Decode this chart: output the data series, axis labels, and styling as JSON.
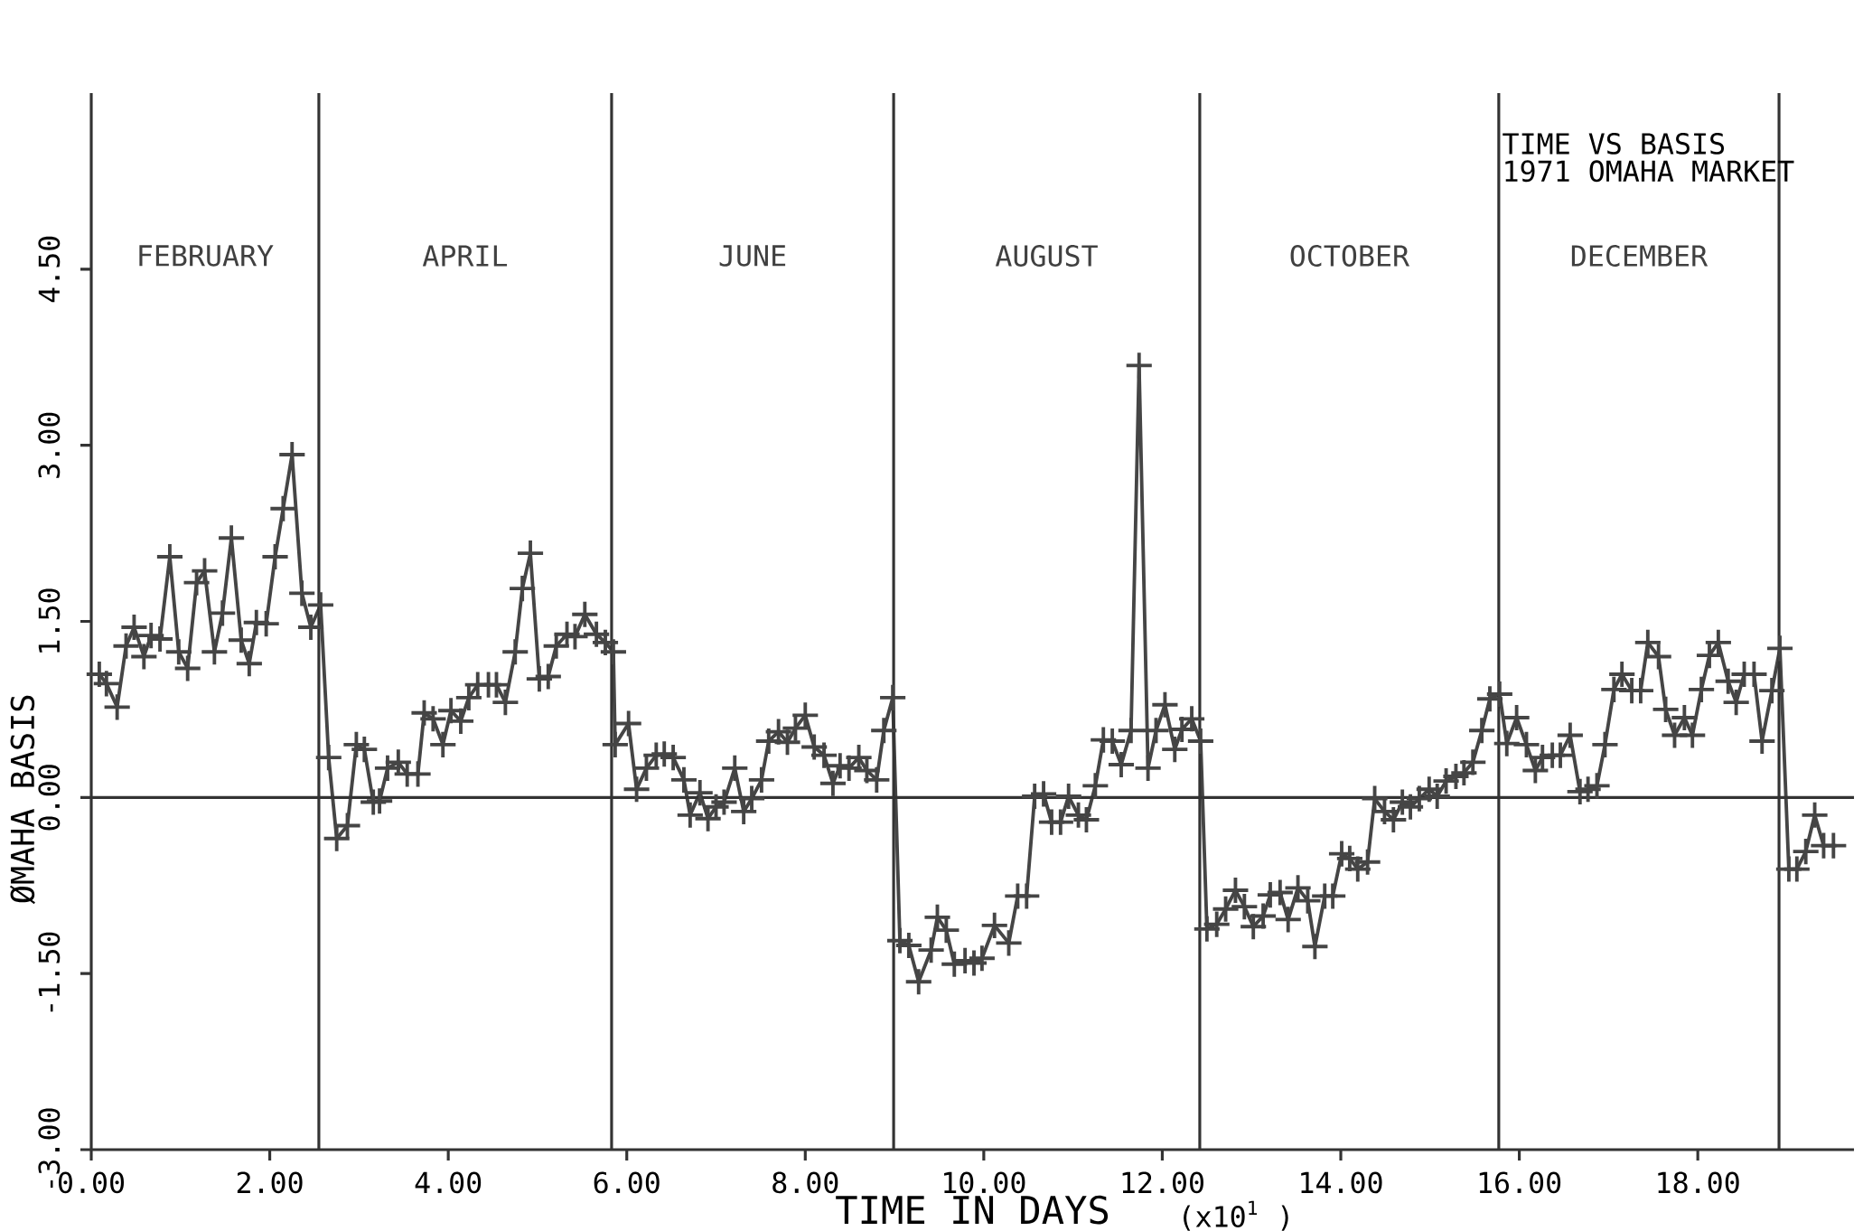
{
  "chart_data": {
    "type": "line",
    "title": "TIME VS BASIS",
    "subtitle": "1971 OMAHA MARKET",
    "xlabel": "TIME IN DAYS",
    "ylabel": "ØMAHA BASIS",
    "annotations": [
      "(x10$^{1}$ )",
      "FEBRUARY",
      "APRIL",
      "JUNE",
      "AUGUST",
      "OCTOBER",
      "DECEMBER"
    ],
    "marker": "cross",
    "line_style": "solid",
    "xlim": [
      0,
      19.75
    ],
    "ylim": [
      -3,
      6
    ],
    "xticks": [
      {
        "value": 0,
        "label": "0.00"
      },
      {
        "value": 2,
        "label": "2.00"
      },
      {
        "value": 4,
        "label": "4.00"
      },
      {
        "value": 6,
        "label": "6.00"
      },
      {
        "value": 8,
        "label": "8.00"
      },
      {
        "value": 10,
        "label": "10.00"
      },
      {
        "value": 12,
        "label": "12.00"
      },
      {
        "value": 14,
        "label": "14.00"
      },
      {
        "value": 16,
        "label": "16.00"
      },
      {
        "value": 18,
        "label": "18.00"
      }
    ],
    "yticks": [
      {
        "value": -3,
        "label": "-3.00"
      },
      {
        "value": -1.5,
        "label": "-1.50"
      },
      {
        "value": 0,
        "label": "0.00"
      },
      {
        "value": 1.5,
        "label": "1.50"
      },
      {
        "value": 3,
        "label": "3.00"
      },
      {
        "value": 4.5,
        "label": "4.50"
      }
    ],
    "ref_lines": [
      {
        "axis": "y",
        "value": 0
      },
      {
        "axis": "x",
        "value": 2.55
      },
      {
        "axis": "x",
        "value": 5.83
      },
      {
        "axis": "x",
        "value": 8.99
      },
      {
        "axis": "x",
        "value": 12.42
      },
      {
        "axis": "x",
        "value": 15.77
      },
      {
        "axis": "x",
        "value": 18.91
      }
    ],
    "series": [
      {
        "color": "#454545",
        "x": [
          0.09,
          0.17,
          0.29,
          0.39,
          0.48,
          0.59,
          0.67,
          0.77,
          0.88,
          0.98,
          1.08,
          1.18,
          1.27,
          1.38,
          1.47,
          1.57,
          1.68,
          1.77,
          1.85,
          1.96,
          2.06,
          2.15,
          2.25,
          2.36,
          2.46,
          2.57,
          2.66,
          2.75,
          2.87,
          2.97,
          3.06,
          3.16,
          3.23,
          3.32,
          3.44,
          3.54,
          3.66,
          3.73,
          3.83,
          3.94,
          4.03,
          4.14,
          4.23,
          4.33,
          4.45,
          4.54,
          4.64,
          4.75,
          4.83,
          4.92,
          5.02,
          5.12,
          5.21,
          5.33,
          5.42,
          5.53,
          5.66,
          5.76,
          5.85,
          5.87,
          6.02,
          6.11,
          6.22,
          6.33,
          6.42,
          6.52,
          6.64,
          6.71,
          6.82,
          6.91,
          7.0,
          7.09,
          7.21,
          7.31,
          7.4,
          7.51,
          7.59,
          7.7,
          7.8,
          7.89,
          8.0,
          8.1,
          8.21,
          8.31,
          8.39,
          8.49,
          8.6,
          8.69,
          8.8,
          8.88,
          8.98,
          9.06,
          9.16,
          9.27,
          9.41,
          9.48,
          9.58,
          9.67,
          9.79,
          9.89,
          9.98,
          10.12,
          10.28,
          10.38,
          10.48,
          10.57,
          10.67,
          10.76,
          10.86,
          10.95,
          11.06,
          11.15,
          11.25,
          11.34,
          11.44,
          11.54,
          11.65,
          11.74,
          11.84,
          11.93,
          12.03,
          12.14,
          12.22,
          12.33,
          12.43,
          12.5,
          12.61,
          12.71,
          12.82,
          12.92,
          13.02,
          13.13,
          13.21,
          13.32,
          13.41,
          13.52,
          13.63,
          13.71,
          13.82,
          13.91,
          14.01,
          14.1,
          14.19,
          14.3,
          14.38,
          14.49,
          14.59,
          14.69,
          14.78,
          14.88,
          14.99,
          15.08,
          15.18,
          15.29,
          15.38,
          15.48,
          15.58,
          15.67,
          15.78,
          15.86,
          15.97,
          16.08,
          16.18,
          16.26,
          16.37,
          16.46,
          16.57,
          16.68,
          16.77,
          16.87,
          16.96,
          17.06,
          17.15,
          17.26,
          17.36,
          17.44,
          17.56,
          17.64,
          17.74,
          17.85,
          17.94,
          18.04,
          18.13,
          18.23,
          18.34,
          18.43,
          18.52,
          18.63,
          18.72,
          18.83,
          18.92,
          19.02,
          19.11,
          19.21,
          19.31,
          19.41,
          19.52
        ],
        "values": [
          1.05,
          0.97,
          0.77,
          1.29,
          1.45,
          1.2,
          1.38,
          1.35,
          2.05,
          1.24,
          1.1,
          1.83,
          1.93,
          1.24,
          1.57,
          2.21,
          1.34,
          1.14,
          1.49,
          1.48,
          2.05,
          2.46,
          2.92,
          1.74,
          1.45,
          1.64,
          0.34,
          -0.35,
          -0.24,
          0.45,
          0.41,
          -0.04,
          -0.03,
          0.25,
          0.3,
          0.2,
          0.2,
          0.72,
          0.67,
          0.45,
          0.74,
          0.65,
          0.85,
          0.96,
          0.96,
          0.96,
          0.81,
          1.24,
          1.78,
          2.08,
          1.01,
          1.03,
          1.29,
          1.39,
          1.37,
          1.56,
          1.39,
          1.32,
          1.24,
          0.45,
          0.63,
          0.07,
          0.25,
          0.36,
          0.37,
          0.34,
          0.15,
          -0.15,
          0.04,
          -0.18,
          -0.08,
          -0.04,
          0.25,
          -0.12,
          -0.01,
          0.15,
          0.48,
          0.56,
          0.47,
          0.59,
          0.7,
          0.43,
          0.36,
          0.12,
          0.27,
          0.25,
          0.34,
          0.23,
          0.15,
          0.57,
          0.85,
          -1.22,
          -1.26,
          -1.57,
          -1.3,
          -1.02,
          -1.13,
          -1.42,
          -1.39,
          -1.41,
          -1.37,
          -1.09,
          -1.24,
          -0.84,
          -0.84,
          0.01,
          0.03,
          -0.21,
          -0.21,
          0.01,
          -0.15,
          -0.19,
          0.1,
          0.49,
          0.48,
          0.28,
          0.57,
          3.68,
          0.25,
          0.57,
          0.79,
          0.41,
          0.58,
          0.67,
          0.48,
          -1.12,
          -1.08,
          -0.95,
          -0.79,
          -0.93,
          -1.1,
          -1.01,
          -0.83,
          -0.81,
          -1.04,
          -0.77,
          -0.88,
          -1.27,
          -0.84,
          -0.84,
          -0.48,
          -0.52,
          -0.61,
          -0.55,
          -0.01,
          -0.12,
          -0.19,
          -0.04,
          -0.08,
          -0.01,
          0.07,
          0.01,
          0.14,
          0.18,
          0.21,
          0.3,
          0.57,
          0.84,
          0.88,
          0.46,
          0.68,
          0.45,
          0.23,
          0.34,
          0.36,
          0.36,
          0.53,
          0.05,
          0.07,
          0.1,
          0.45,
          0.92,
          1.05,
          0.91,
          0.91,
          1.32,
          1.2,
          0.75,
          0.53,
          0.68,
          0.53,
          0.92,
          1.21,
          1.32,
          0.99,
          0.81,
          1.05,
          1.05,
          0.48,
          0.91,
          1.27,
          -0.61,
          -0.61,
          -0.46,
          -0.15,
          -0.41,
          -0.41
        ]
      }
    ]
  }
}
